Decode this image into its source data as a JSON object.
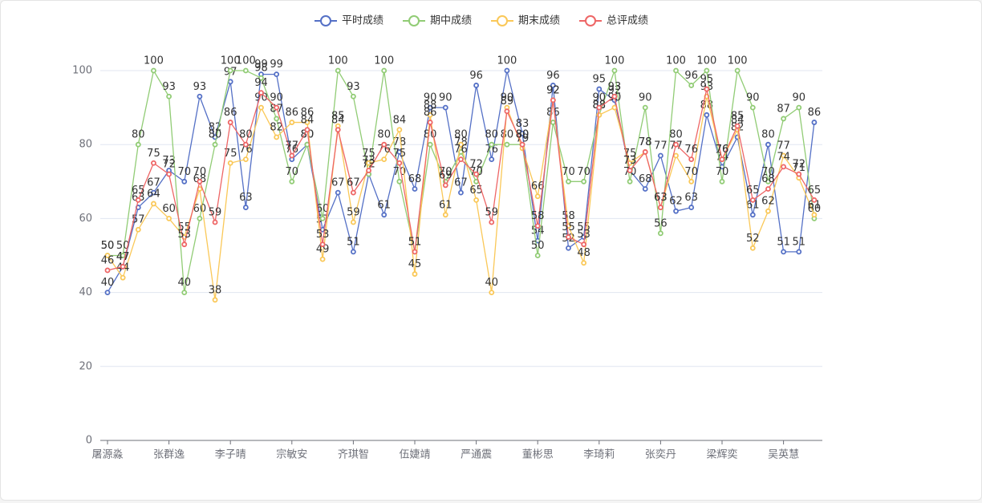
{
  "chart_data": {
    "type": "line",
    "categories": [
      "屠源淼",
      null,
      null,
      null,
      "张群逸",
      null,
      null,
      null,
      "李子晴",
      null,
      null,
      null,
      "宗敏安",
      null,
      null,
      null,
      "齐琪智",
      null,
      null,
      null,
      "伍婕靖",
      null,
      null,
      null,
      "严通震",
      null,
      null,
      null,
      "董彬思",
      null,
      null,
      null,
      "李琦莉",
      null,
      null,
      null,
      "张奕丹",
      null,
      null,
      null,
      "梁辉奕",
      null,
      null,
      null,
      "吴英慧",
      null,
      null
    ],
    "series": [
      {
        "name": "平时成绩",
        "color": "#5470c6",
        "values": [
          40,
          47,
          63,
          67,
          73,
          70,
          93,
          82,
          97,
          63,
          99,
          99,
          76,
          80,
          57,
          67,
          51,
          72,
          61,
          78,
          68,
          90,
          90,
          67,
          96,
          76,
          100,
          83,
          54,
          96,
          52,
          55,
          95,
          92,
          73,
          68,
          77,
          62,
          63,
          88,
          74,
          82,
          61,
          80,
          51,
          51,
          86
        ]
      },
      {
        "name": "期中成绩",
        "color": "#91cc75",
        "values": [
          50,
          50,
          80,
          100,
          93,
          40,
          60,
          80,
          100,
          100,
          98,
          87,
          70,
          80,
          60,
          100,
          93,
          72,
          100,
          70,
          51,
          80,
          70,
          78,
          70,
          80,
          80,
          80,
          50,
          86,
          70,
          70,
          88,
          100,
          70,
          90,
          56,
          100,
          96,
          100,
          70,
          100,
          90,
          70,
          87,
          90,
          60
        ]
      },
      {
        "name": "期末成绩",
        "color": "#fac858",
        "values": [
          50,
          44,
          57,
          64,
          60,
          55,
          68,
          38,
          75,
          76,
          90,
          82,
          86,
          86,
          49,
          85,
          59,
          75,
          76,
          84,
          45,
          88,
          61,
          80,
          65,
          40,
          90,
          79,
          66,
          92,
          58,
          48,
          88,
          90,
          75,
          78,
          63,
          77,
          70,
          93,
          76,
          84,
          52,
          62,
          77,
          71,
          61
        ]
      },
      {
        "name": "总评成绩",
        "color": "#ee6666",
        "values": [
          46,
          47,
          65,
          75,
          72,
          53,
          70,
          59,
          86,
          80,
          94,
          90,
          77,
          84,
          53,
          84,
          67,
          73,
          80,
          75,
          51,
          86,
          69,
          76,
          72,
          59,
          89,
          80,
          58,
          92,
          55,
          53,
          90,
          93,
          73,
          78,
          63,
          80,
          76,
          95,
          76,
          85,
          65,
          68,
          74,
          72,
          65
        ]
      }
    ],
    "ylim": [
      0,
      100
    ],
    "yticks": [
      0,
      20,
      40,
      60,
      80,
      100
    ],
    "grid": true
  }
}
